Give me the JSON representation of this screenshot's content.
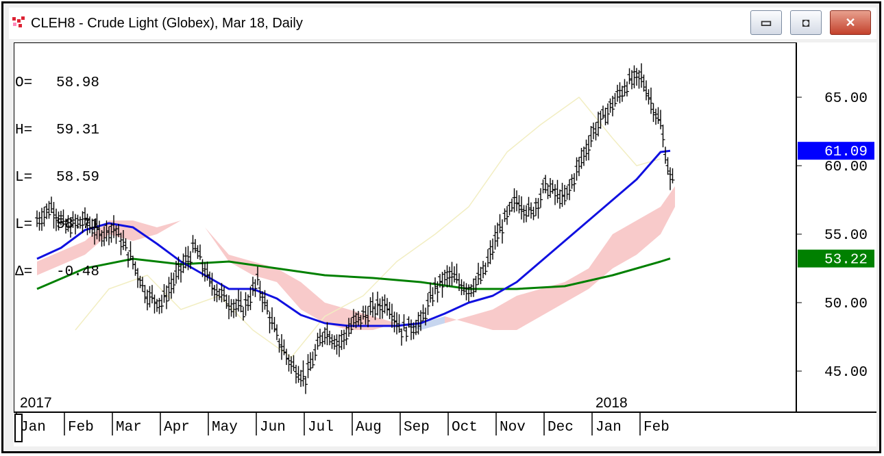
{
  "window": {
    "title": "CLEH8 - Crude Light (Globex), Mar 18, Daily",
    "buttons": {
      "minimize": "▭",
      "maximize": "◘",
      "close": "✕"
    }
  },
  "ohlc": [
    {
      "label": "O=",
      "value": "58.98"
    },
    {
      "label": "H=",
      "value": "59.31"
    },
    {
      "label": "L=",
      "value": "58.59"
    },
    {
      "label": "L=",
      "value": "58.71"
    },
    {
      "label": "Δ=",
      "value": "-0.48"
    }
  ],
  "colors": {
    "price": "#000000",
    "ma_fast": "#1010e0",
    "ma_slow": "#008000",
    "cloud_bull": "#f6b8b8",
    "cloud_bear": "#b4c8ea",
    "lagging": "#f2eec2",
    "tag_blue": "#0000ff",
    "tag_green": "#008000"
  },
  "chart_data": {
    "type": "line",
    "symbol": "CLEH8",
    "ylim": [
      42,
      69
    ],
    "yticks": [
      "65.00",
      "60.00",
      "55.00",
      "50.00",
      "45.00"
    ],
    "ytick_values": [
      65,
      60,
      55,
      50,
      45
    ],
    "price_tags": [
      {
        "text": "61.09",
        "value": 61.09,
        "color": "blue"
      },
      {
        "text": "53.22",
        "value": 53.22,
        "color": "green"
      }
    ],
    "year_labels": [
      {
        "text": "2017",
        "month_index": 0
      },
      {
        "text": "2018",
        "month_index": 12
      }
    ],
    "months": [
      "Jan",
      "Feb",
      "Mar",
      "Apr",
      "May",
      "Jun",
      "Jul",
      "Aug",
      "Sep",
      "Oct",
      "Nov",
      "Dec",
      "Jan",
      "Feb"
    ],
    "series": [
      {
        "key": "price",
        "x": [
          0,
          0.3,
          0.6,
          1.0,
          1.3,
          1.6,
          2.0,
          2.3,
          2.6,
          3.0,
          3.3,
          3.6,
          4.0,
          4.3,
          4.6,
          5.0,
          5.3,
          5.6,
          6.0,
          6.3,
          6.6,
          7.0,
          7.3,
          7.6,
          8.0,
          8.3,
          8.6,
          9.0,
          9.3,
          9.6,
          10.0,
          10.3,
          10.6,
          11.0,
          11.3,
          11.6,
          12.0,
          12.3,
          12.6,
          13.0,
          13.2,
          13.3
        ],
        "values": [
          56.0,
          57.0,
          55.5,
          56.0,
          55.0,
          55.5,
          53.0,
          50.5,
          50.0,
          52.5,
          54.0,
          51.5,
          50.0,
          49.5,
          51.5,
          47.5,
          45.5,
          44.5,
          48.0,
          47.0,
          48.5,
          49.5,
          50.0,
          48.0,
          48.5,
          51.0,
          52.0,
          51.0,
          52.0,
          55.0,
          57.5,
          56.5,
          58.5,
          57.5,
          60.0,
          62.5,
          64.5,
          66.0,
          66.5,
          63.0,
          59.0,
          58.7
        ]
      },
      {
        "key": "ma_fast",
        "name": "",
        "x": [
          0,
          0.5,
          1.0,
          1.5,
          2.0,
          2.5,
          3.0,
          3.5,
          4.0,
          4.5,
          5.0,
          5.5,
          6.0,
          6.5,
          7.0,
          7.5,
          8.0,
          8.5,
          9.0,
          9.5,
          10.0,
          10.5,
          11.0,
          11.5,
          12.0,
          12.5,
          13.0,
          13.2
        ],
        "values": [
          53.2,
          54.0,
          55.3,
          55.8,
          55.5,
          54.3,
          53.0,
          52.0,
          51.0,
          51.0,
          50.3,
          49.1,
          48.5,
          48.3,
          48.3,
          48.3,
          48.5,
          49.2,
          50.0,
          50.5,
          51.5,
          53.0,
          54.5,
          56.0,
          57.5,
          59.0,
          61.0,
          61.09
        ]
      },
      {
        "key": "ma_slow",
        "name": "",
        "x": [
          0,
          1,
          2,
          3,
          4,
          5,
          6,
          7,
          8,
          9,
          10,
          11,
          12,
          13,
          13.2
        ],
        "values": [
          51.0,
          52.5,
          53.2,
          52.8,
          53.0,
          52.5,
          52.0,
          51.8,
          51.5,
          51.0,
          51.0,
          51.2,
          52.0,
          53.0,
          53.22
        ]
      },
      {
        "key": "lagging",
        "name": "",
        "x": [
          0.8,
          1.5,
          2.3,
          3.0,
          3.8,
          4.5,
          5.3,
          6.0,
          6.8,
          7.5,
          8.3,
          9.0,
          9.8,
          10.5,
          11.3,
          12.0,
          12.5,
          13.0
        ],
        "values": [
          48.0,
          51.0,
          52.0,
          49.5,
          50.5,
          48.0,
          46.0,
          49.0,
          50.5,
          53.0,
          55.0,
          57.0,
          61.0,
          63.0,
          65.0,
          62.0,
          60.0,
          60.5
        ]
      }
    ],
    "cloud": {
      "x": [
        0,
        1,
        1.5,
        2,
        2.5,
        3,
        3.5,
        4,
        4.5,
        5,
        5.5,
        6,
        6.5,
        7,
        7.5,
        8,
        8.5,
        9,
        9.5,
        10,
        10.5,
        11,
        11.5,
        12,
        12.5,
        13,
        13.3
      ],
      "span_a": [
        53.0,
        54.5,
        56.0,
        56.0,
        55.5,
        56.0,
        55.5,
        53.5,
        53.0,
        52.5,
        51.5,
        50.0,
        49.5,
        49.0,
        48.5,
        48.0,
        48.5,
        49.0,
        49.5,
        50.5,
        51.0,
        51.5,
        52.5,
        55.0,
        56.0,
        57.0,
        58.5
      ],
      "span_b": [
        52.0,
        53.5,
        55.0,
        54.5,
        55.0,
        56.0,
        55.5,
        53.0,
        52.0,
        51.5,
        49.5,
        48.5,
        48.0,
        48.0,
        48.5,
        48.5,
        49.0,
        48.5,
        48.0,
        48.0,
        49.0,
        50.0,
        51.0,
        52.5,
        53.5,
        55.0,
        57.0
      ]
    }
  }
}
